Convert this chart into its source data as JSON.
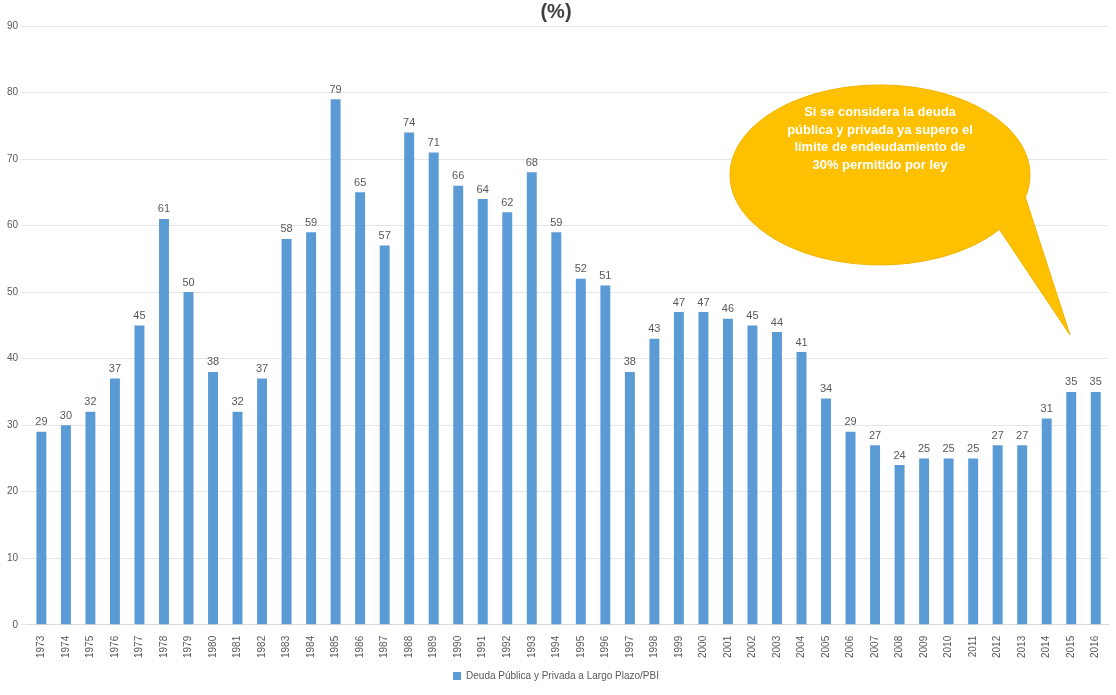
{
  "chart_data": {
    "type": "bar",
    "title": "(%)",
    "categories": [
      "1973",
      "1974",
      "1975",
      "1976",
      "1977",
      "1978",
      "1979",
      "1980",
      "1981",
      "1982",
      "1983",
      "1984",
      "1985",
      "1986",
      "1987",
      "1988",
      "1989",
      "1990",
      "1991",
      "1992",
      "1993",
      "1994",
      "1995",
      "1996",
      "1997",
      "1998",
      "1999",
      "2000",
      "2001",
      "2002",
      "2003",
      "2004",
      "2005",
      "2006",
      "2007",
      "2008",
      "2009",
      "2010",
      "2011",
      "2012",
      "2013",
      "2014",
      "2015",
      "2016"
    ],
    "series": [
      {
        "name": "Deuda Pública y Privada a Largo Plazo/PBI",
        "color": "#5b9bd5",
        "values": [
          29,
          30,
          32,
          37,
          45,
          61,
          50,
          38,
          32,
          37,
          58,
          59,
          79,
          65,
          57,
          74,
          71,
          66,
          64,
          62,
          68,
          59,
          52,
          51,
          38,
          43,
          47,
          47,
          46,
          45,
          44,
          41,
          34,
          29,
          27,
          24,
          25,
          25,
          25,
          27,
          27,
          31,
          35,
          35
        ]
      }
    ],
    "ylim": [
      0,
      90
    ],
    "yticks": [
      0,
      10,
      20,
      30,
      40,
      50,
      60,
      70,
      80,
      90
    ],
    "grid": "y",
    "legend": "bottom",
    "data_labels": true,
    "annotations": [
      "Si se considera la deuda pública y privada ya supero el límite  de endeudamiento de 30% permitido por ley"
    ]
  }
}
